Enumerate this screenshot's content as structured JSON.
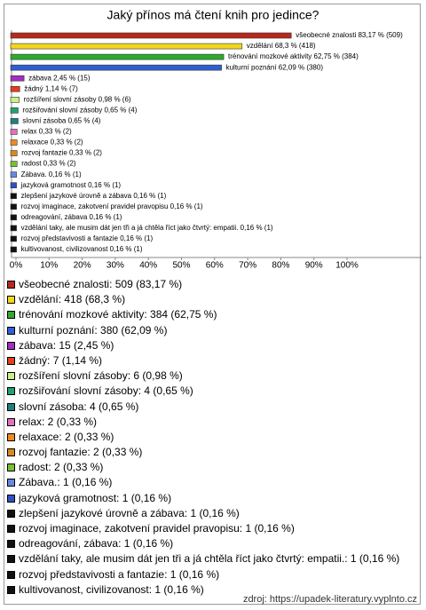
{
  "chart_data": {
    "type": "barh",
    "title": "Jaký přínos má čtení knih pro jedince?",
    "values": [
      83.17,
      68.3,
      62.75,
      62.09,
      2.45,
      1.14,
      0.98,
      0.65,
      0.65,
      0.33,
      0.33,
      0.33,
      0.33,
      0.16,
      0.16,
      0.16,
      0.16,
      0.16,
      0.16,
      0.16,
      0.16
    ],
    "value_labels": [
      "všeobecné znalosti 83,17 % (509)",
      "vzdělání 68,3 % (418)",
      "trénování mozkové aktivity 62,75 % (384)",
      "kulturní poznání 62,09 % (380)",
      "zábava 2,45 % (15)",
      "žádný 1,14 % (7)",
      "rozšíření slovní zásoby 0,98 % (6)",
      "rozšiřování slovní zásoby 0,65 % (4)",
      "slovní zásoba 0,65 % (4)",
      "relax 0,33 % (2)",
      "relaxace 0,33 % (2)",
      "rozvoj fantazie 0,33 % (2)",
      "radost 0,33 % (2)",
      "Zábava. 0,16 % (1)",
      "jazyková gramotnost 0,16 % (1)",
      "zlepšení jazykové úrovně a zábava 0,16 % (1)",
      "rozvoj imaginace, zakotvení pravidel pravopisu 0,16 % (1)",
      "odreagování, zábava 0,16 % (1)",
      "vzdělání taky, ale musim dát jen tři a já chtěla říct jako čtvrtý: empatii. 0,16 % (1)",
      "rozvoj představivosti a fantazie 0,16 % (1)",
      "kultivovanost, civilizovanost 0,16 % (1)"
    ],
    "legend": [
      "všeobecné znalosti: 509 (83,17 %)",
      "vzdělání: 418 (68,3 %)",
      "trénování mozkové aktivity: 384 (62,75 %)",
      "kulturní poznání: 380 (62,09 %)",
      "zábava: 15 (2,45 %)",
      "žádný: 7 (1,14 %)",
      "rozšíření slovní zásoby: 6 (0,98 %)",
      "rozšiřování slovní zásoby: 4 (0,65 %)",
      "slovní zásoba: 4 (0,65 %)",
      "relax: 2 (0,33 %)",
      "relaxace: 2 (0,33 %)",
      "rozvoj fantazie: 2 (0,33 %)",
      "radost: 2 (0,33 %)",
      "Zábava.: 1 (0,16 %)",
      "jazyková gramotnost: 1 (0,16 %)",
      "zlepšení jazykové úrovně a zábava: 1 (0,16 %)",
      "rozvoj imaginace, zakotvení pravidel pravopisu: 1 (0,16 %)",
      "odreagování, zábava: 1 (0,16 %)",
      "vzdělání taky, ale musim dát jen tři a já chtěla říct jako čtvrtý: empatii.: 1 (0,16 %)",
      "rozvoj představivosti a fantazie: 1 (0,16 %)",
      "kultivovanost, civilizovanost: 1 (0,16 %)"
    ],
    "colors": [
      "#b8281c",
      "#f2d61c",
      "#2eaa2e",
      "#2f5fd0",
      "#a030c0",
      "#e0401a",
      "#c8f08a",
      "#22a070",
      "#1f8080",
      "#e070c0",
      "#f08a20",
      "#d88a20",
      "#78c030",
      "#6888e0",
      "#3050c0",
      "#111111",
      "#111111",
      "#111111",
      "#111111",
      "#111111",
      "#111111"
    ],
    "xlim": [
      0,
      100
    ],
    "xticks": [
      {
        "value": 0,
        "label": "0%"
      },
      {
        "value": 10,
        "label": "10%"
      },
      {
        "value": 20,
        "label": "20%"
      },
      {
        "value": 30,
        "label": "30%"
      },
      {
        "value": 40,
        "label": "40%"
      },
      {
        "value": 50,
        "label": "50%"
      },
      {
        "value": 60,
        "label": "60%"
      },
      {
        "value": 70,
        "label": "70%"
      },
      {
        "value": 80,
        "label": "80%"
      },
      {
        "value": 90,
        "label": "90%"
      },
      {
        "value": 100,
        "label": "100%"
      }
    ],
    "source": "zdroj: https://upadek-literatury.vyplnto.cz"
  }
}
